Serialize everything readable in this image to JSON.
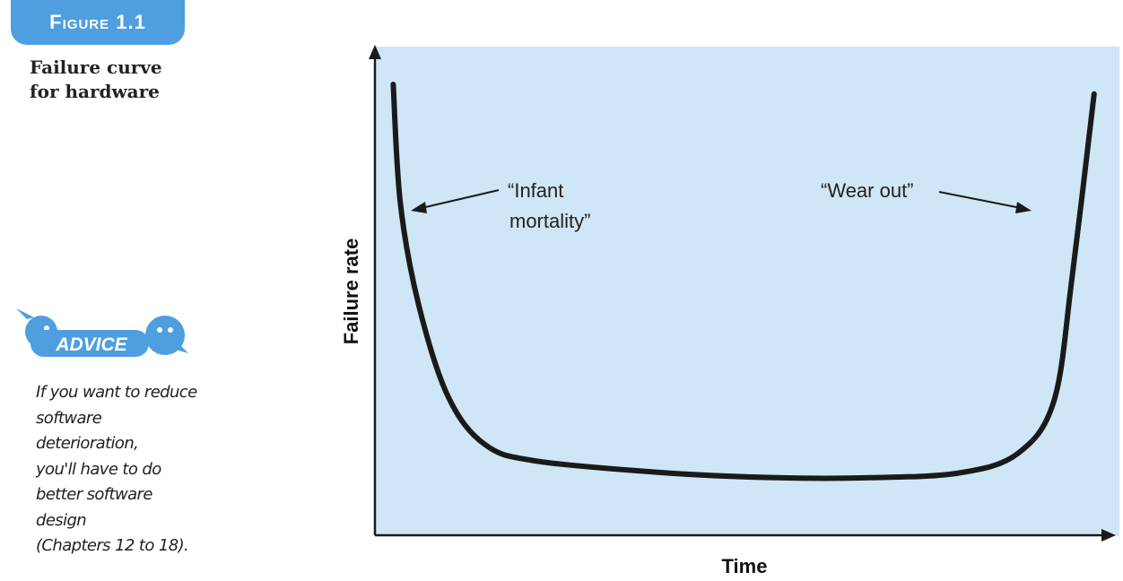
{
  "figure": {
    "tab_label": "Figure 1.1",
    "caption": "Failure curve\nfor hardware"
  },
  "advice": {
    "badge_label": "ADVICE",
    "text": "If you want to reduce\nsoftware deterioration,\nyou'll have to do\nbetter software design\n(Chapters 12 to 18)."
  },
  "colors": {
    "plot_background": "#cfe6f6",
    "accent_blue": "#4f9ee0",
    "curve": "#1a1a1a"
  },
  "chart_data": {
    "type": "line",
    "title": "",
    "xlabel": "Time",
    "ylabel": "Failure rate",
    "x_ticks": false,
    "y_ticks": false,
    "grid": false,
    "xlim": [
      0,
      1
    ],
    "ylim": [
      0,
      1
    ],
    "series": [
      {
        "name": "",
        "values_note": "",
        "points": [
          [
            0.025,
            0.94
          ],
          [
            0.035,
            0.69
          ],
          [
            0.06,
            0.48
          ],
          [
            0.1,
            0.29
          ],
          [
            0.15,
            0.19
          ],
          [
            0.22,
            0.155
          ],
          [
            0.4,
            0.13
          ],
          [
            0.55,
            0.12
          ],
          [
            0.68,
            0.12
          ],
          [
            0.8,
            0.13
          ],
          [
            0.88,
            0.17
          ],
          [
            0.93,
            0.28
          ],
          [
            0.955,
            0.54
          ],
          [
            0.985,
            0.92
          ]
        ]
      }
    ],
    "annotations": [
      {
        "text_line1": "“Infant",
        "text_line2": "mortality”"
      },
      {
        "text_line1": "“Wear out”",
        "text_line2": ""
      }
    ]
  }
}
